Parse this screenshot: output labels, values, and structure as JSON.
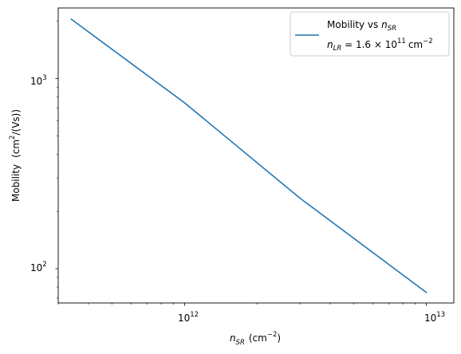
{
  "chart_data": {
    "type": "line",
    "title": "",
    "xlabel": {
      "main": "n",
      "sub": "SR",
      "unit_open": "(cm",
      "unit_sup": "−2",
      "unit_close": ")"
    },
    "ylabel": {
      "main": "Mobility",
      "unit_open": "(cm",
      "unit_sup": "2",
      "unit_close": "/(Vs))"
    },
    "xscale": "log",
    "yscale": "log",
    "xlim": [
      300000000000.0,
      13000000000000.0
    ],
    "ylim": [
      66,
      2350
    ],
    "x_ticks": [
      {
        "value": 1000000000000.0,
        "base": "10",
        "exp": "12"
      },
      {
        "value": 10000000000000.0,
        "base": "10",
        "exp": "13"
      }
    ],
    "y_ticks": [
      {
        "value": 100,
        "base": "10",
        "exp": "2"
      },
      {
        "value": 1000,
        "base": "10",
        "exp": "3"
      }
    ],
    "grid": false,
    "legend": {
      "placement": "top-right",
      "entries": [
        {
          "line1": {
            "text": "Mobility vs ",
            "var": "n",
            "sub": "SR"
          },
          "line2": {
            "var": "n",
            "sub": "LR",
            "eq": " = 1.6 × 10",
            "exp": "11",
            "unit": "cm",
            "unit_exp": "−2"
          }
        }
      ]
    },
    "series": [
      {
        "color": "#1f77b4",
        "x": [
          340000000000.0,
          1000000000000.0,
          3000000000000.0,
          10000000000000.0
        ],
        "y": [
          2050,
          745,
          235,
          75
        ]
      }
    ]
  }
}
